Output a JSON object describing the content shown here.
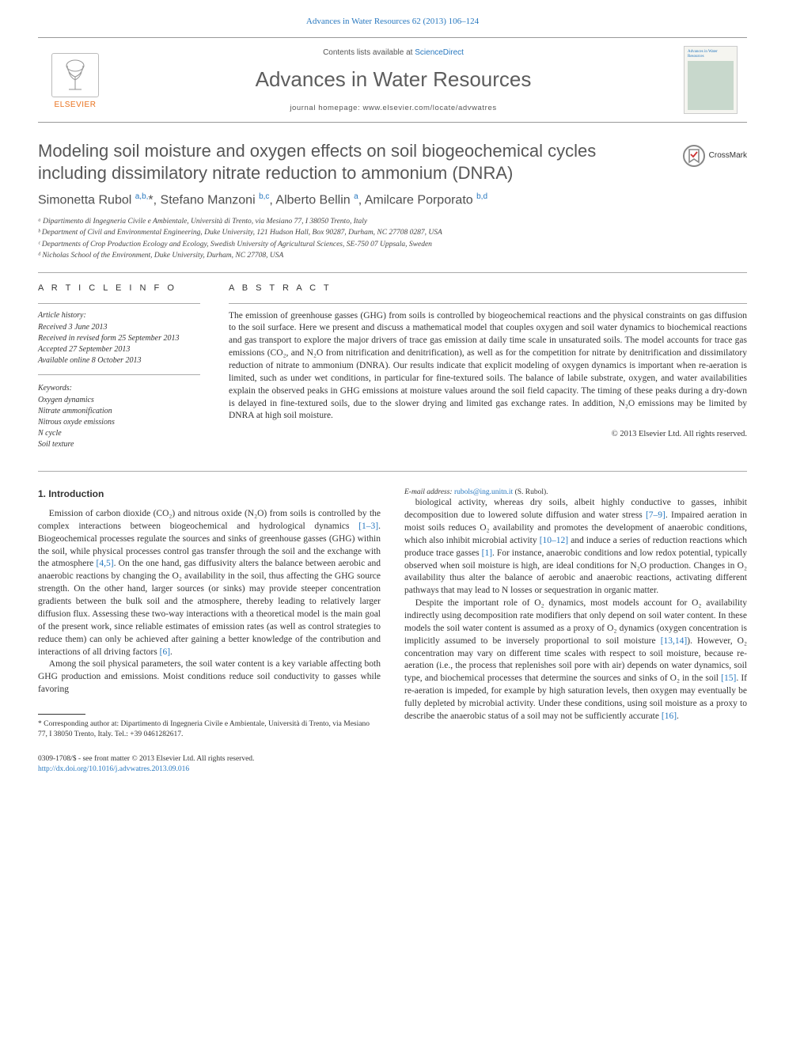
{
  "citation": {
    "journal": "Advances in Water Resources",
    "volume": "62",
    "year": "2013",
    "pages": "106–124",
    "full": "Advances in Water Resources 62 (2013) 106–124"
  },
  "header": {
    "lists_prefix": "Contents lists available at ",
    "lists_link": "ScienceDirect",
    "journal_name": "Advances in Water Resources",
    "homepage_prefix": "journal homepage: ",
    "homepage_url": "www.elsevier.com/locate/advwatres",
    "elsevier_word": "ELSEVIER"
  },
  "crossmark_label": "CrossMark",
  "title": "Modeling soil moisture and oxygen effects on soil biogeochemical cycles including dissimilatory nitrate reduction to ammonium (DNRA)",
  "authors_html": "Simonetta Rubol <sup>a,b,</sup>*, Stefano Manzoni <sup>b,c</sup>, Alberto Bellin <sup>a</sup>, Amilcare Porporato <sup>b,d</sup>",
  "affiliations": [
    "ᵃ Dipartimento di Ingegneria Civile e Ambientale, Università di Trento, via Mesiano 77, I 38050 Trento, Italy",
    "ᵇ Department of Civil and Environmental Engineering, Duke University, 121 Hudson Hall, Box 90287, Durham, NC 27708 0287, USA",
    "ᶜ Departments of Crop Production Ecology and Ecology, Swedish University of Agricultural Sciences, SE-750 07 Uppsala, Sweden",
    "ᵈ Nicholas School of the Environment, Duke University, Durham, NC 27708, USA"
  ],
  "article_info": {
    "heading": "A R T I C L E   I N F O",
    "history_head": "Article history:",
    "history": [
      "Received 3 June 2013",
      "Received in revised form 25 September 2013",
      "Accepted 27 September 2013",
      "Available online 8 October 2013"
    ],
    "keywords_head": "Keywords:",
    "keywords": [
      "Oxygen dynamics",
      "Nitrate ammonification",
      "Nitrous oxyde emissions",
      "N cycle",
      "Soil texture"
    ]
  },
  "abstract": {
    "heading": "A B S T R A C T",
    "text": "The emission of greenhouse gasses (GHG) from soils is controlled by biogeochemical reactions and the physical constraints on gas diffusion to the soil surface. Here we present and discuss a mathematical model that couples oxygen and soil water dynamics to biochemical reactions and gas transport to explore the major drivers of trace gas emission at daily time scale in unsaturated soils. The model accounts for trace gas emissions (CO₂, and N₂O from nitrification and denitrification), as well as for the competition for nitrate by denitrification and dissimilatory reduction of nitrate to ammonium (DNRA). Our results indicate that explicit modeling of oxygen dynamics is important when re-aeration is limited, such as under wet conditions, in particular for fine-textured soils. The balance of labile substrate, oxygen, and water availabilities explain the observed peaks in GHG emissions at moisture values around the soil field capacity. The timing of these peaks during a dry-down is delayed in fine-textured soils, due to the slower drying and limited gas exchange rates. In addition, N₂O emissions may be limited by DNRA at high soil moisture.",
    "copyright": "© 2013 Elsevier Ltd. All rights reserved."
  },
  "intro": {
    "heading": "1. Introduction",
    "p1": "Emission of carbon dioxide (CO₂) and nitrous oxide (N₂O) from soils is controlled by the complex interactions between biogeochemical and hydrological dynamics [1–3]. Biogeochemical processes regulate the sources and sinks of greenhouse gasses (GHG) within the soil, while physical processes control gas transfer through the soil and the exchange with the atmosphere [4,5]. On the one hand, gas diffusivity alters the balance between aerobic and anaerobic reactions by changing the O₂ availability in the soil, thus affecting the GHG source strength. On the other hand, larger sources (or sinks) may provide steeper concentration gradients between the bulk soil and the atmosphere, thereby leading to relatively larger diffusion flux. Assessing these two-way interactions with a theoretical model is the main goal of the present work, since reliable estimates of emission rates (as well as control strategies to reduce them) can only be achieved after gaining a better knowledge of the contribution and interactions of all driving factors [6].",
    "p2": "Among the soil physical parameters, the soil water content is a key variable affecting both GHG production and emissions. Moist conditions reduce soil conductivity to gasses while favoring",
    "p3": "biological activity, whereas dry soils, albeit highly conductive to gasses, inhibit decomposition due to lowered solute diffusion and water stress [7–9]. Impaired aeration in moist soils reduces O₂ availability and promotes the development of anaerobic conditions, which also inhibit microbial activity [10–12] and induce a series of reduction reactions which produce trace gasses [1]. For instance, anaerobic conditions and low redox potential, typically observed when soil moisture is high, are ideal conditions for N₂O production. Changes in O₂ availability thus alter the balance of aerobic and anaerobic reactions, activating different pathways that may lead to N losses or sequestration in organic matter.",
    "p4": "Despite the important role of O₂ dynamics, most models account for O₂ availability indirectly using decomposition rate modifiers that only depend on soil water content. In these models the soil water content is assumed as a proxy of O₂ dynamics (oxygen concentration is implicitly assumed to be inversely proportional to soil moisture [13,14]). However, O₂ concentration may vary on different time scales with respect to soil moisture, because re-aeration (i.e., the process that replenishes soil pore with air) depends on water dynamics, soil type, and biochemical processes that determine the sources and sinks of O₂ in the soil [15]. If re-aeration is impeded, for example by high saturation levels, then oxygen may eventually be fully depleted by microbial activity. Under these conditions, using soil moisture as a proxy to describe the anaerobic status of a soil may not be sufficiently accurate [16]."
  },
  "corresponding": {
    "star": "* Corresponding author at: Dipartimento di Ingegneria Civile e Ambientale, Università di Trento, via Mesiano 77, I 38050 Trento, Italy. Tel.: +39 0461282617.",
    "email_label": "E-mail address:",
    "email": "rubols@ing.unitn.it",
    "email_of": "(S. Rubol)."
  },
  "footer": {
    "left_line1": "0309-1708/$ - see front matter © 2013 Elsevier Ltd. All rights reserved.",
    "left_line2_prefix": "http://dx.doi.org/",
    "doi": "10.1016/j.advwatres.2013.09.016"
  },
  "colors": {
    "link": "#2878bf",
    "orange": "#e9711c",
    "text": "#333333",
    "rule": "#999999",
    "title_gray": "#575757"
  },
  "typography": {
    "body_pt": 11.5,
    "title_pt": 22,
    "journal_pt": 26,
    "authors_pt": 16,
    "affil_pt": 9.5,
    "abstract_pt": 11.5,
    "footnote_pt": 9.5
  }
}
